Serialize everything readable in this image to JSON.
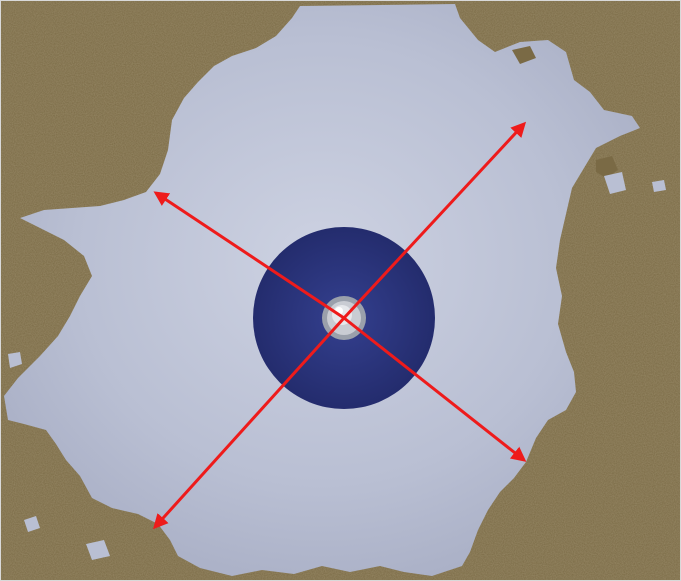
{
  "scene": {
    "subject": "photograph",
    "colors": {
      "surface": "#b9bfd3",
      "surface_light": "#cdd2e2",
      "surface_dark": "#a5abc2",
      "coating": "#7a6a45",
      "coating_dark": "#5f5234",
      "coating_light": "#8f7f57",
      "disc": "#2d3682",
      "disc_dark": "#1f2660",
      "pin_outer": "#b8bcc4",
      "pin_inner": "#dfe2e8",
      "arrow": "#ee1b1b",
      "frame": "#d9d9d9"
    },
    "arrow_count": 4
  }
}
